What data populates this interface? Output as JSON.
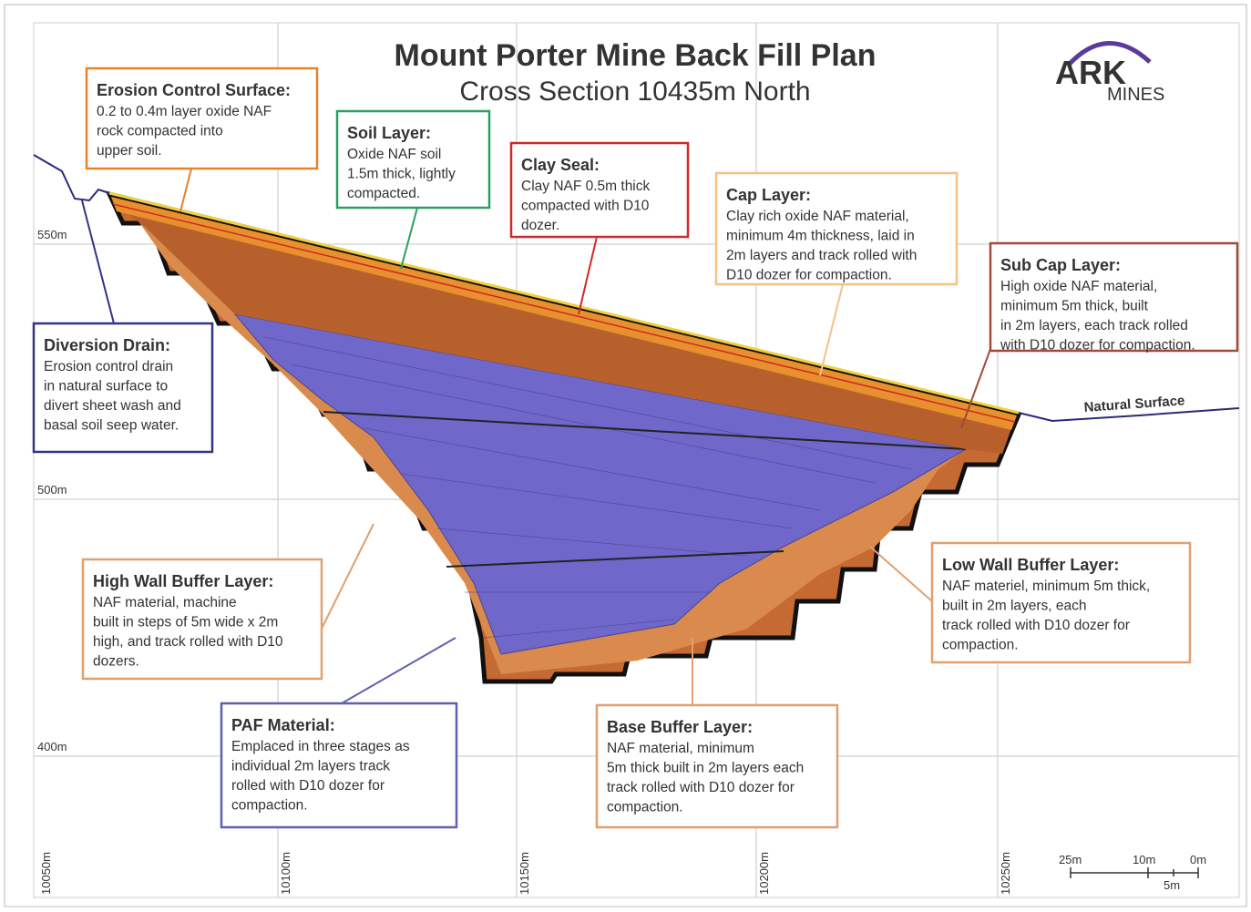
{
  "title": "Mount Porter Mine Back Fill Plan",
  "subtitle": "Cross Section 10435m North",
  "logo": {
    "main": "ARK",
    "sub": "MINES"
  },
  "elevation_labels": [
    "550m",
    "500m",
    "400m"
  ],
  "easting_labels": [
    "10050m",
    "10100m",
    "10150m",
    "10200m",
    "10250m"
  ],
  "natural_surface": "Natural Surface",
  "scale_labels": [
    "25m",
    "10m",
    "0m",
    "5m"
  ],
  "callouts": [
    {
      "title": "Erosion Control Surface:",
      "lines": [
        "0.2 to 0.4m layer oxide NAF",
        "rock compacted into",
        "upper soil."
      ]
    },
    {
      "title": "Soil Layer:",
      "lines": [
        "Oxide NAF soil",
        "1.5m thick, lightly",
        "compacted."
      ]
    },
    {
      "title": "Clay Seal:",
      "lines": [
        "Clay NAF 0.5m thick",
        "compacted with D10",
        "dozer."
      ]
    },
    {
      "title": "Cap Layer:",
      "lines": [
        "Clay rich oxide NAF material,",
        "minimum 4m thickness, laid in",
        "2m layers and track rolled with",
        "D10 dozer for compaction."
      ]
    },
    {
      "title": "Sub Cap Layer:",
      "lines": [
        "High oxide NAF material,",
        "minimum 5m thick, built",
        "in 2m layers, each track rolled",
        "with D10 dozer for compaction."
      ]
    },
    {
      "title": "Diversion Drain:",
      "lines": [
        "Erosion control drain",
        "in natural surface to",
        "divert sheet wash and",
        "basal soil seep water."
      ]
    },
    {
      "title": "High Wall Buffer Layer:",
      "lines": [
        "NAF material, machine",
        "built in steps  of 5m wide x 2m",
        "high, and track rolled with D10",
        "dozers."
      ]
    },
    {
      "title": "PAF Material:",
      "lines": [
        "Emplaced in three stages as",
        "individual 2m layers track",
        "rolled with D10 dozer for",
        "compaction."
      ]
    },
    {
      "title": "Base Buffer Layer:",
      "lines": [
        "NAF material, minimum",
        "5m thick built in 2m layers each",
        "track rolled with D10 dozer for",
        "compaction."
      ]
    },
    {
      "title": "Low Wall Buffer Layer:",
      "lines": [
        "NAF materiel, minimum 5m thick,",
        "built in 2m layers, each",
        "track rolled with D10 dozer for",
        "compaction."
      ]
    }
  ]
}
